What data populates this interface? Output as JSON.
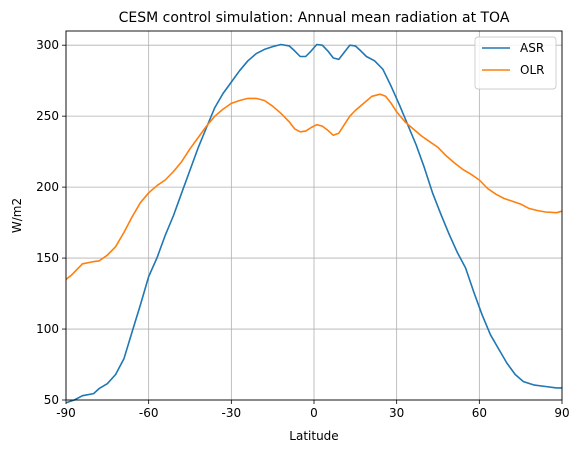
{
  "chart_data": {
    "type": "line",
    "title": "CESM control simulation: Annual mean radiation at TOA",
    "xlabel": "Latitude",
    "ylabel": "W/m2",
    "xlim": [
      -90,
      90
    ],
    "ylim": [
      50,
      310
    ],
    "xticks": [
      -90,
      -60,
      -30,
      0,
      30,
      60,
      90
    ],
    "yticks": [
      50,
      100,
      150,
      200,
      250,
      300
    ],
    "grid": true,
    "legend_position": "upper right",
    "series": [
      {
        "name": "ASR",
        "color": "#1f77b4",
        "points": [
          [
            -90,
            48
          ],
          [
            -87,
            50
          ],
          [
            -84,
            53
          ],
          [
            -80,
            54.5
          ],
          [
            -78,
            58
          ],
          [
            -75,
            61.5
          ],
          [
            -72,
            68
          ],
          [
            -69,
            79
          ],
          [
            -66,
            98
          ],
          [
            -63,
            117
          ],
          [
            -60,
            137
          ],
          [
            -57,
            150
          ],
          [
            -54,
            166
          ],
          [
            -51,
            180
          ],
          [
            -48,
            196
          ],
          [
            -45,
            212
          ],
          [
            -42,
            228
          ],
          [
            -39,
            242
          ],
          [
            -36,
            256
          ],
          [
            -33,
            266
          ],
          [
            -30,
            274
          ],
          [
            -27,
            282
          ],
          [
            -24,
            289
          ],
          [
            -21,
            294
          ],
          [
            -18,
            297
          ],
          [
            -15,
            299
          ],
          [
            -12,
            300.5
          ],
          [
            -9,
            299.5
          ],
          [
            -7,
            296
          ],
          [
            -5,
            292
          ],
          [
            -3,
            292
          ],
          [
            -1,
            296
          ],
          [
            1,
            300.5
          ],
          [
            3,
            300
          ],
          [
            5,
            296
          ],
          [
            7,
            291
          ],
          [
            9,
            290
          ],
          [
            11,
            295
          ],
          [
            13,
            300
          ],
          [
            15,
            299.5
          ],
          [
            17,
            296
          ],
          [
            19,
            292
          ],
          [
            22,
            289
          ],
          [
            25,
            283
          ],
          [
            28,
            271
          ],
          [
            31,
            258
          ],
          [
            34,
            244
          ],
          [
            37,
            230
          ],
          [
            40,
            214
          ],
          [
            43,
            196
          ],
          [
            46,
            181
          ],
          [
            49,
            167
          ],
          [
            52,
            154
          ],
          [
            55,
            143
          ],
          [
            58,
            126
          ],
          [
            61,
            110
          ],
          [
            64,
            96
          ],
          [
            67,
            86
          ],
          [
            70,
            76
          ],
          [
            73,
            68
          ],
          [
            76,
            63
          ],
          [
            80,
            60.5
          ],
          [
            84,
            59.5
          ],
          [
            88,
            58.5
          ],
          [
            90,
            58.5
          ]
        ]
      },
      {
        "name": "OLR",
        "color": "#ff7f0e",
        "points": [
          [
            -90,
            135
          ],
          [
            -88,
            138
          ],
          [
            -86,
            142
          ],
          [
            -84,
            146
          ],
          [
            -80,
            147.5
          ],
          [
            -78,
            148
          ],
          [
            -75,
            152
          ],
          [
            -72,
            158
          ],
          [
            -69,
            168
          ],
          [
            -66,
            179
          ],
          [
            -63,
            189
          ],
          [
            -60,
            196
          ],
          [
            -57,
            201
          ],
          [
            -54,
            205
          ],
          [
            -51,
            211
          ],
          [
            -48,
            218
          ],
          [
            -45,
            227
          ],
          [
            -42,
            235
          ],
          [
            -39,
            243
          ],
          [
            -36,
            250
          ],
          [
            -33,
            255
          ],
          [
            -30,
            259
          ],
          [
            -27,
            261
          ],
          [
            -24,
            262.5
          ],
          [
            -21,
            262.5
          ],
          [
            -18,
            261
          ],
          [
            -15,
            257
          ],
          [
            -12,
            252
          ],
          [
            -9,
            246
          ],
          [
            -7,
            241
          ],
          [
            -5,
            239
          ],
          [
            -3,
            239.5
          ],
          [
            -1,
            242
          ],
          [
            1,
            244
          ],
          [
            3,
            243
          ],
          [
            5,
            240
          ],
          [
            7,
            236.5
          ],
          [
            9,
            238
          ],
          [
            11,
            244
          ],
          [
            13,
            250
          ],
          [
            15,
            254
          ],
          [
            18,
            259
          ],
          [
            21,
            264
          ],
          [
            24,
            265.5
          ],
          [
            26,
            264
          ],
          [
            28,
            259
          ],
          [
            30,
            253
          ],
          [
            33,
            246
          ],
          [
            36,
            241
          ],
          [
            39,
            236
          ],
          [
            42,
            232
          ],
          [
            45,
            228
          ],
          [
            48,
            222
          ],
          [
            51,
            217
          ],
          [
            54,
            212.5
          ],
          [
            57,
            209
          ],
          [
            60,
            205
          ],
          [
            63,
            199
          ],
          [
            66,
            195
          ],
          [
            69,
            192
          ],
          [
            72,
            190
          ],
          [
            75,
            188
          ],
          [
            78,
            185
          ],
          [
            81,
            183.5
          ],
          [
            84,
            182.5
          ],
          [
            88,
            182
          ],
          [
            90,
            183
          ]
        ]
      }
    ]
  }
}
